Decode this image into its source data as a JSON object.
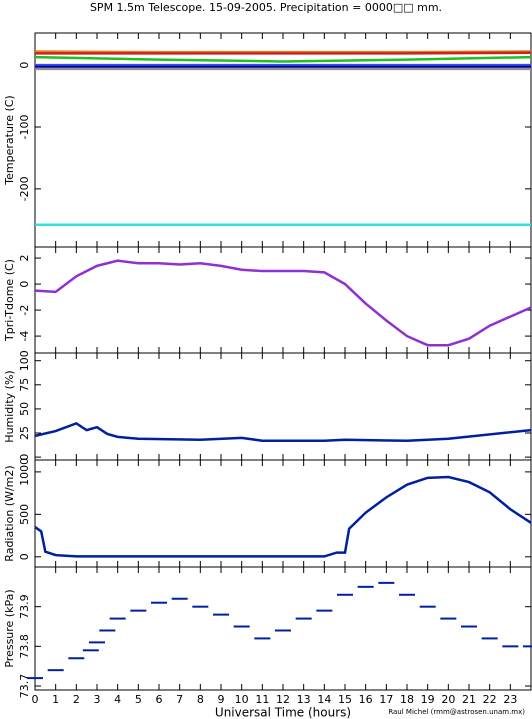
{
  "page": {
    "title": "SPM 1.5m Telescope. 15-09-2005. Precipitation = 0000□□ mm.",
    "credit": "Raul Michel (rmm@astrosen.unam.mx)"
  },
  "chart_data": [
    {
      "type": "line",
      "ylabel": "Temperature (C)",
      "ylim": [
        -294,
        52
      ],
      "yticks": [
        0,
        -100,
        -200
      ],
      "series": [
        {
          "color": "#e08020",
          "x": [
            0,
            6,
            12,
            18,
            24
          ],
          "values": [
            22,
            21,
            21,
            21,
            22
          ]
        },
        {
          "color": "#d02020",
          "x": [
            0,
            6,
            12,
            18,
            24
          ],
          "values": [
            19,
            19,
            19,
            19,
            20
          ]
        },
        {
          "color": "#20c020",
          "x": [
            0,
            6,
            12,
            18,
            24
          ],
          "values": [
            13,
            9,
            6,
            9,
            13
          ]
        },
        {
          "color": "#3050ff",
          "x": [
            0,
            6,
            12,
            18,
            24
          ],
          "values": [
            0,
            0,
            0,
            0,
            0
          ]
        },
        {
          "color": "#000090",
          "x": [
            0,
            6,
            12,
            18,
            24
          ],
          "values": [
            -3,
            -3,
            -3,
            -3,
            -3
          ]
        },
        {
          "color": "#909090",
          "x": [
            0,
            6,
            12,
            18,
            24
          ],
          "values": [
            -6,
            -6,
            -6,
            -6,
            -6
          ]
        },
        {
          "color": "#30e0e0",
          "x": [
            0,
            6,
            12,
            18,
            24
          ],
          "values": [
            -258,
            -258,
            -258,
            -258,
            -258
          ]
        }
      ]
    },
    {
      "type": "line",
      "ylabel": "Tpri-Tdome (C)",
      "ylim": [
        -5.3,
        2.85
      ],
      "yticks": [
        2,
        0,
        -2,
        -4
      ],
      "series": [
        {
          "color": "#9030d0",
          "x": [
            0,
            1,
            2,
            3,
            4,
            5,
            6,
            7,
            8,
            9,
            10,
            11,
            12,
            13,
            14,
            15,
            16,
            17,
            18,
            19,
            20,
            21,
            22,
            23,
            24
          ],
          "values": [
            -0.5,
            -0.6,
            0.6,
            1.4,
            1.8,
            1.6,
            1.6,
            1.5,
            1.6,
            1.4,
            1.1,
            1.0,
            1.0,
            1.0,
            0.9,
            0.0,
            -1.5,
            -2.8,
            -4.0,
            -4.7,
            -4.7,
            -4.2,
            -3.2,
            -2.5,
            -1.8
          ]
        }
      ]
    },
    {
      "type": "line",
      "ylabel": "Humidity (%)",
      "ylim": [
        -3,
        108
      ],
      "yticks": [
        0,
        25,
        50,
        75,
        100
      ],
      "series": [
        {
          "color": "#0020a0",
          "x": [
            0,
            1,
            2,
            2.5,
            3,
            3.5,
            4,
            5,
            8,
            10,
            11,
            14,
            15,
            18,
            20,
            24
          ],
          "values": [
            22,
            27,
            35,
            28,
            31,
            24,
            21,
            19,
            18,
            20,
            17,
            17,
            18,
            17,
            19,
            28
          ]
        }
      ]
    },
    {
      "type": "line",
      "ylabel": "Radiation (W/m2)",
      "ylim": [
        -120,
        1140
      ],
      "yticks": [
        0,
        500,
        1000
      ],
      "series": [
        {
          "color": "#0020a0",
          "x": [
            0,
            0.3,
            0.5,
            1,
            2,
            14,
            14.6,
            15,
            15.2,
            16,
            17,
            18,
            19,
            20,
            21,
            22,
            23,
            24
          ],
          "values": [
            350,
            300,
            60,
            20,
            5,
            5,
            50,
            50,
            330,
            520,
            700,
            850,
            930,
            940,
            880,
            760,
            560,
            400
          ]
        }
      ]
    },
    {
      "type": "scatter",
      "ylabel": "Pressure (kPa)",
      "xlabel": "Universal Time (hours)",
      "ylim": [
        73.69,
        74.0
      ],
      "yticks": [
        73.7,
        73.8,
        73.9
      ],
      "xlim": [
        0,
        24
      ],
      "xticks": [
        0,
        1,
        2,
        3,
        4,
        5,
        6,
        7,
        8,
        9,
        10,
        11,
        12,
        13,
        14,
        15,
        16,
        17,
        18,
        19,
        20,
        21,
        22,
        23
      ],
      "series": [
        {
          "color": "#0020a0",
          "x": [
            0,
            1,
            2,
            2.7,
            3,
            3.5,
            4,
            5,
            6,
            7,
            8,
            9,
            10,
            11,
            12,
            13,
            14,
            15,
            16,
            17,
            18,
            19,
            20,
            21,
            22,
            23,
            24
          ],
          "values": [
            73.72,
            73.74,
            73.77,
            73.79,
            73.81,
            73.84,
            73.87,
            73.89,
            73.91,
            73.92,
            73.9,
            73.88,
            73.85,
            73.82,
            73.84,
            73.87,
            73.89,
            73.93,
            73.95,
            73.96,
            73.93,
            73.9,
            73.87,
            73.85,
            73.82,
            73.8,
            73.8
          ]
        }
      ]
    }
  ]
}
